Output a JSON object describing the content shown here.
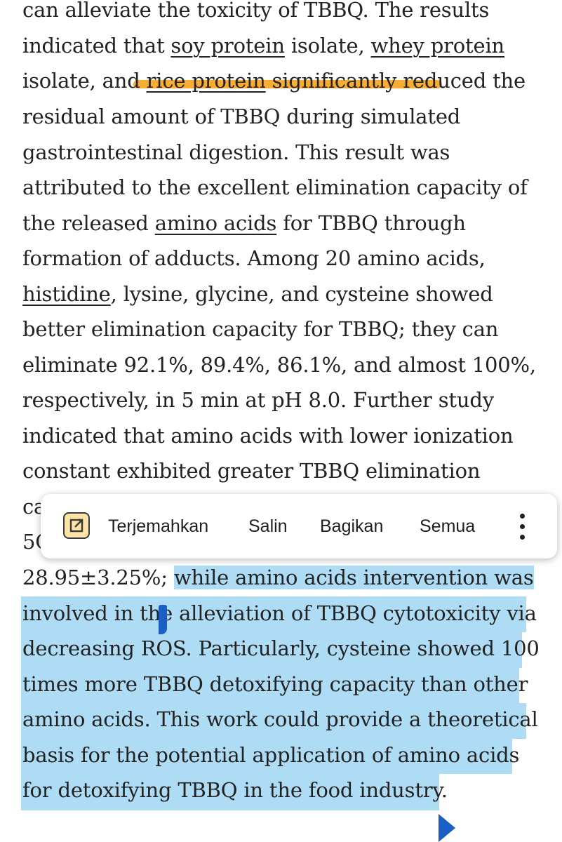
{
  "article": {
    "l1": "can alleviate the toxicity of TBBQ. The results",
    "l2a": "indicated that ",
    "l2b": "soy protein",
    "l2c": " isolate, ",
    "l2d": "whey protein",
    "l3a": "isolate, and ",
    "l3b": "rice protein",
    "l3c": " significantly reduced the",
    "l4": "residual amount of TBBQ during simulated",
    "l5": "gastrointestinal digestion. This result was",
    "l6": "attributed to the excellent elimination capacity of",
    "l7a": "the released ",
    "l7b": "amino acids",
    "l7c": " for TBBQ through",
    "l8": "formation of adducts. Among 20 amino acids,",
    "l9a": "histidine",
    "l9b": ", lysine, glycine, and cysteine showed",
    "l10": "better elimination capacity for TBBQ; they can",
    "l11": "eliminate 92.1%, 89.4%, 86.1%, and almost 100%,",
    "l12": "respectively, in 5 min at pH 8.0. Further study",
    "l13": "indicated that amino acids with lower ionization",
    "l14": "constant exhibited greater TBBQ elimination",
    "l15": "ca",
    "l16": "5C",
    "l17a": "28.95±3.25%; ",
    "l17b": "while amino acids intervention was",
    "l18": "involved in the alleviation of TBBQ cytotoxicity via",
    "l19": "decreasing ROS. Particularly, cysteine showed 100",
    "l20": "times more TBBQ detoxifying capacity than other",
    "l21": "amino acids. This work could provide a theoretical",
    "l22": "basis for the potential application of amino acids",
    "l23": "for detoxifying TBBQ in the food industry."
  },
  "toolbar": {
    "translate_label": "Terjemahkan",
    "copy_label": "Salin",
    "share_label": "Bagikan",
    "select_all_label": "Semua",
    "translate_icon": "open-external-icon",
    "more_icon": "more-vertical-icon"
  },
  "colors": {
    "selection": "#aedcf5",
    "highlight_marker": "#f6a623",
    "handle": "#1a5fc4"
  }
}
